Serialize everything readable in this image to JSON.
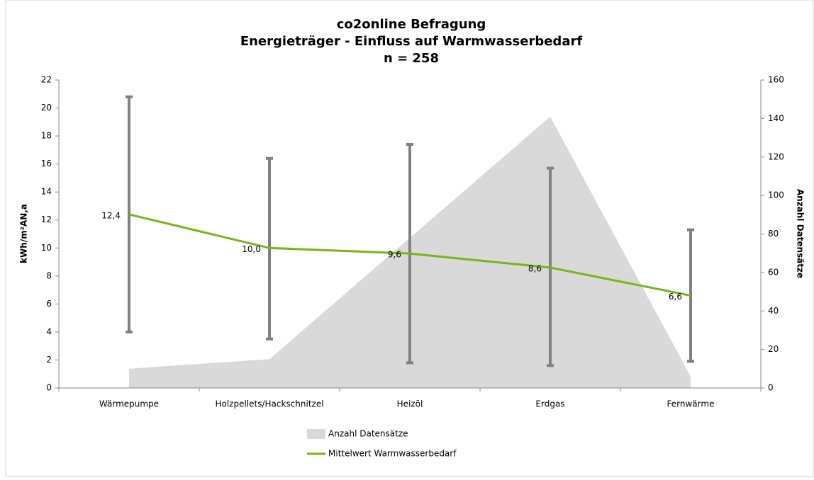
{
  "chart_data": {
    "type": "line",
    "title": [
      "co2online Befragung",
      "Energieträger - Einfluss auf Warmwasserbedarf",
      "n = 258"
    ],
    "ylabel": "kWh/m²AN,a",
    "y2label": "Anzahl Datensätze",
    "categories": [
      "Wärmepumpe",
      "Holzpellets/Hackschnitzel",
      "Heizöl",
      "Erdgas",
      "Fernwärme"
    ],
    "series": [
      {
        "name": "Anzahl Datensätze",
        "type": "area",
        "axis": "y2",
        "color": "#d9d9d9",
        "values": [
          10,
          15,
          78,
          141,
          6
        ]
      },
      {
        "name": "Mittelwert Warmwasserbedarf",
        "type": "line",
        "color": "#7ab317",
        "values": [
          12.4,
          10.0,
          9.6,
          8.6,
          6.6
        ],
        "value_labels": [
          "12,4",
          "10,0",
          "9,6",
          "8,6",
          "6,6"
        ]
      }
    ],
    "error_bars": {
      "color": "#808080",
      "low": [
        4.0,
        3.5,
        1.8,
        1.6,
        1.9
      ],
      "high": [
        20.8,
        16.4,
        17.4,
        15.7,
        11.3
      ]
    },
    "ylim": [
      0,
      22
    ],
    "yticks": [
      0,
      2,
      4,
      6,
      8,
      10,
      12,
      14,
      16,
      18,
      20,
      22
    ],
    "y2lim": [
      0,
      160
    ],
    "y2ticks": [
      0,
      20,
      40,
      60,
      80,
      100,
      120,
      140,
      160
    ],
    "legend": "bottom"
  }
}
